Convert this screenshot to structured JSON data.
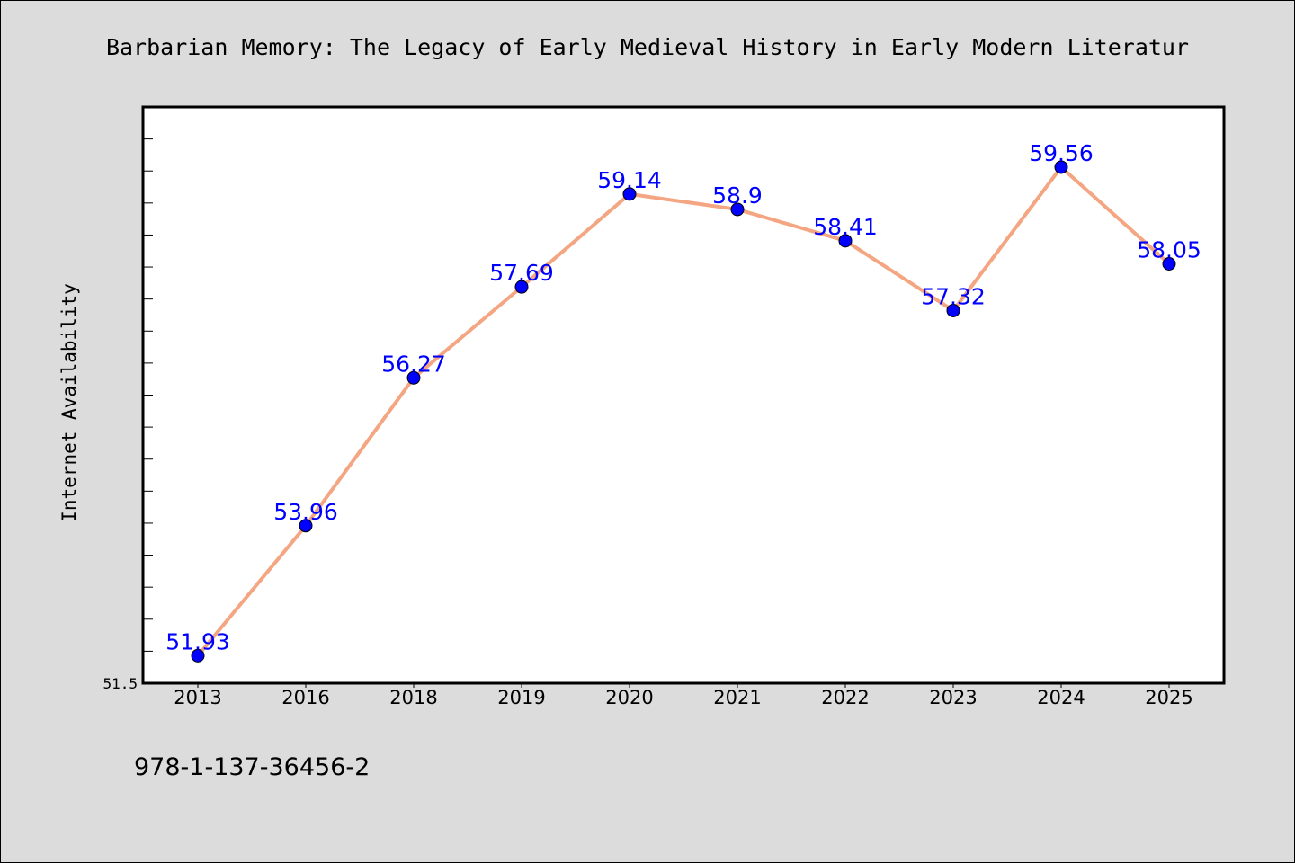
{
  "chart_data": {
    "type": "line",
    "title": "Barbarian Memory: The Legacy of Early Medieval History in Early Modern Literatur",
    "xlabel": "",
    "ylabel": "Internet Availability",
    "categories": [
      "2013",
      "2016",
      "2018",
      "2019",
      "2020",
      "2021",
      "2022",
      "2023",
      "2024",
      "2025"
    ],
    "series": [
      {
        "values": [
          51.93,
          53.96,
          56.27,
          57.69,
          59.14,
          58.9,
          58.41,
          57.32,
          59.56,
          58.05
        ],
        "labels": [
          "51.93",
          "53.96",
          "56.27",
          "57.69",
          "59.14",
          "58.9",
          "58.41",
          "57.32",
          "59.56",
          "58.05"
        ]
      }
    ],
    "y_tick_label": "51.5",
    "ylim": [
      51.5,
      60.5
    ],
    "grid": false,
    "legend": "none"
  },
  "footer": {
    "isbn": "978-1-137-36456-2"
  },
  "colors": {
    "line": "#f4a582",
    "marker": "#0000ff",
    "label": "#0000ff",
    "background": "#dcdcdc",
    "plot_bg": "#ffffff"
  }
}
